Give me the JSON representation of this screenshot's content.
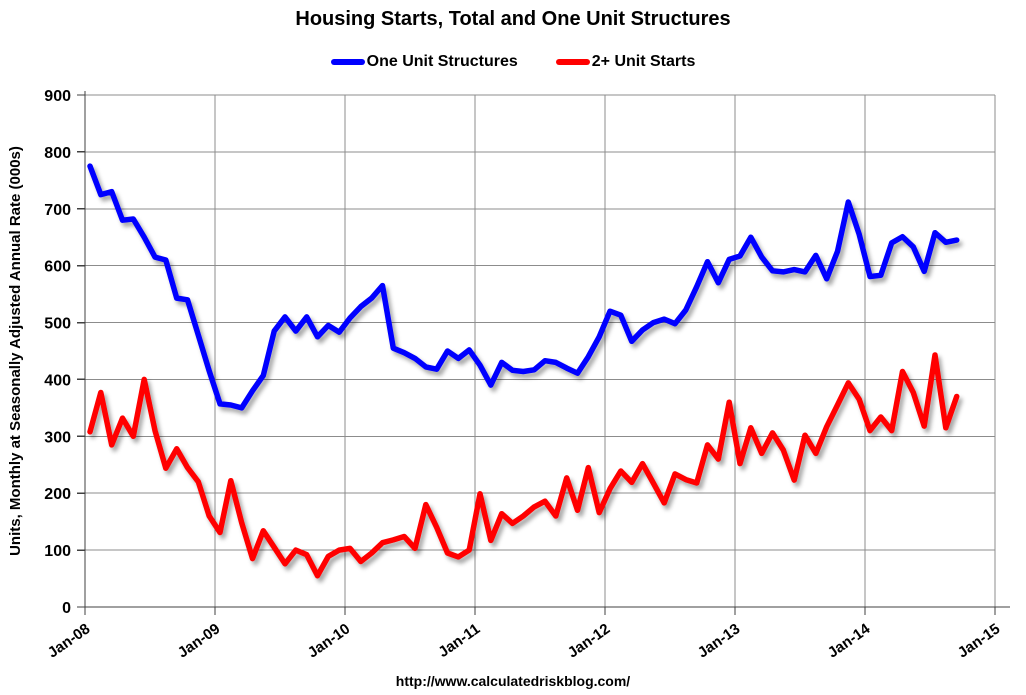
{
  "title": "Housing Starts, Total and One Unit Structures",
  "footer_url": "http://www.calculatedriskblog.com/",
  "legend": [
    {
      "label": "One Unit Structures",
      "color": "#0000ff"
    },
    {
      "label": "2+ Unit Starts",
      "color": "#ff0000"
    }
  ],
  "colors": {
    "grid": "#8c8c8c",
    "axis": "#404040",
    "text": "#000000",
    "background": "#ffffff"
  },
  "chart_data": {
    "type": "line",
    "title": "Housing Starts, Total and One Unit Structures",
    "xlabel": "",
    "ylabel": "Units, Monthly at Seasonally Adjusted Annual Rate (000s)",
    "ylim": [
      0,
      900
    ],
    "ytick_step": 100,
    "y_tick_labels": [
      "0",
      "100",
      "200",
      "300",
      "400",
      "500",
      "600",
      "700",
      "800",
      "900"
    ],
    "x_tick_labels": [
      "Jan-08",
      "Jan-09",
      "Jan-10",
      "Jan-11",
      "Jan-12",
      "Jan-13",
      "Jan-14",
      "Jan-15"
    ],
    "x_unit": "month",
    "x_first_point": "Jan-08",
    "x_last_point": "Sep-14",
    "x_axis_total_months": 84,
    "grid": true,
    "legend_position": "top-center",
    "series": [
      {
        "name": "One Unit Structures",
        "color": "#0000ff",
        "values": [
          775,
          725,
          730,
          680,
          682,
          650,
          615,
          610,
          543,
          540,
          478,
          415,
          357,
          355,
          350,
          380,
          407,
          485,
          510,
          485,
          510,
          475,
          495,
          483,
          508,
          528,
          543,
          565,
          455,
          447,
          437,
          422,
          418,
          450,
          437,
          452,
          425,
          390,
          430,
          416,
          414,
          417,
          433,
          430,
          420,
          411,
          440,
          475,
          520,
          513,
          467,
          487,
          500,
          506,
          498,
          522,
          563,
          607,
          570,
          611,
          617,
          650,
          615,
          591,
          589,
          593,
          589,
          618,
          577,
          625,
          712,
          655,
          581,
          583,
          640,
          651,
          633,
          590,
          658,
          641,
          645
        ]
      },
      {
        "name": "2+ Unit Starts",
        "color": "#ff0000",
        "values": [
          308,
          377,
          285,
          332,
          300,
          400,
          310,
          244,
          278,
          245,
          220,
          160,
          131,
          222,
          148,
          85,
          134,
          105,
          76,
          100,
          92,
          55,
          89,
          100,
          103,
          80,
          95,
          113,
          118,
          124,
          103,
          180,
          140,
          95,
          88,
          100,
          199,
          117,
          164,
          147,
          160,
          176,
          186,
          160,
          227,
          170,
          245,
          166,
          208,
          239,
          219,
          252,
          218,
          183,
          234,
          224,
          218,
          285,
          260,
          360,
          252,
          315,
          270,
          306,
          276,
          223,
          302,
          270,
          317,
          355,
          394,
          365,
          310,
          334,
          310,
          414,
          377,
          318,
          443,
          315,
          370
        ]
      }
    ]
  }
}
